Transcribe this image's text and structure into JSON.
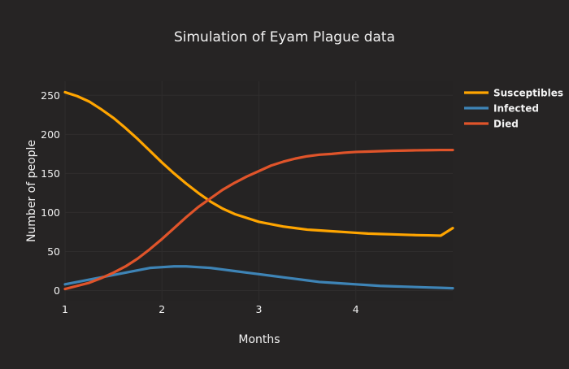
{
  "theme": {
    "paper_bg": "#262424",
    "plot_bg": "#252323",
    "grid_color": "#2f2d2d",
    "text_color": "#f2f2f2"
  },
  "chart_data": {
    "type": "line",
    "title": "Simulation of Eyam Plague data",
    "xlabel": "Months",
    "ylabel": "Number of people",
    "xlim": [
      1,
      5
    ],
    "ylim": [
      -13,
      268
    ],
    "x_ticks": [
      1,
      2,
      3,
      4
    ],
    "y_ticks": [
      0,
      50,
      100,
      150,
      200,
      250
    ],
    "grid": true,
    "legend_position": "top-right",
    "x": [
      1.0,
      1.125,
      1.25,
      1.375,
      1.5,
      1.625,
      1.75,
      1.875,
      2.0,
      2.125,
      2.25,
      2.375,
      2.5,
      2.625,
      2.75,
      2.875,
      3.0,
      3.125,
      3.25,
      3.375,
      3.5,
      3.625,
      3.75,
      3.875,
      4.0,
      4.125,
      4.25,
      4.375,
      4.5,
      4.625,
      4.75,
      4.875,
      5.0
    ],
    "series": [
      {
        "name": "Susceptibles",
        "color": "#ffa500",
        "values": [
          254,
          249,
          242,
          232,
          221,
          208,
          194,
          179,
          164,
          150,
          137,
          125,
          114,
          105,
          98,
          93,
          88,
          85,
          82,
          80,
          78,
          77,
          76,
          75,
          74,
          73,
          72.5,
          72,
          71.5,
          71,
          70.7,
          70.3,
          80
        ]
      },
      {
        "name": "Infected",
        "color": "#3e84b6",
        "values": [
          8,
          11,
          14,
          17,
          20,
          23,
          26,
          29,
          30,
          31,
          31,
          30,
          29,
          27,
          25,
          23,
          21,
          19,
          17,
          15,
          13,
          11,
          10,
          9,
          8,
          7,
          6,
          5.5,
          5,
          4.5,
          4,
          3.5,
          3
        ]
      },
      {
        "name": "Died",
        "color": "#e0542a",
        "values": [
          2,
          6,
          10,
          16,
          23,
          31,
          41,
          53,
          66,
          80,
          94,
          107,
          118,
          129,
          138,
          146,
          153,
          160,
          165,
          169,
          172,
          174,
          175,
          176.5,
          177.5,
          178,
          178.5,
          179,
          179.3,
          179.6,
          179.8,
          180,
          180
        ]
      }
    ]
  }
}
